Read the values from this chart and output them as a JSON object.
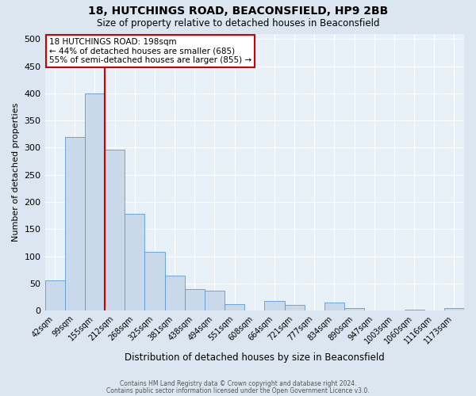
{
  "title": "18, HUTCHINGS ROAD, BEACONSFIELD, HP9 2BB",
  "subtitle": "Size of property relative to detached houses in Beaconsfield",
  "xlabel": "Distribution of detached houses by size in Beaconsfield",
  "ylabel": "Number of detached properties",
  "bin_labels": [
    "42sqm",
    "99sqm",
    "155sqm",
    "212sqm",
    "268sqm",
    "325sqm",
    "381sqm",
    "438sqm",
    "494sqm",
    "551sqm",
    "608sqm",
    "664sqm",
    "721sqm",
    "777sqm",
    "834sqm",
    "890sqm",
    "947sqm",
    "1003sqm",
    "1060sqm",
    "1116sqm",
    "1173sqm"
  ],
  "bar_values": [
    55,
    320,
    400,
    297,
    178,
    108,
    65,
    40,
    37,
    12,
    0,
    18,
    10,
    0,
    15,
    5,
    0,
    0,
    2,
    0,
    5
  ],
  "bar_color": "#c9d9ea",
  "bar_edge_color": "#5b9bd5",
  "vline_pos": 2.5,
  "vline_color": "#cc0000",
  "ylim": [
    0,
    510
  ],
  "yticks": [
    0,
    50,
    100,
    150,
    200,
    250,
    300,
    350,
    400,
    450,
    500
  ],
  "annotation_title": "18 HUTCHINGS ROAD: 198sqm",
  "annotation_line1": "← 44% of detached houses are smaller (685)",
  "annotation_line2": "55% of semi-detached houses are larger (855) →",
  "annotation_box_color": "#ffffff",
  "annotation_box_edge": "#cc0000",
  "footer1": "Contains HM Land Registry data © Crown copyright and database right 2024.",
  "footer2": "Contains public sector information licensed under the Open Government Licence v3.0.",
  "bg_color": "#dce6f0",
  "plot_bg_color": "#e8f0f8"
}
